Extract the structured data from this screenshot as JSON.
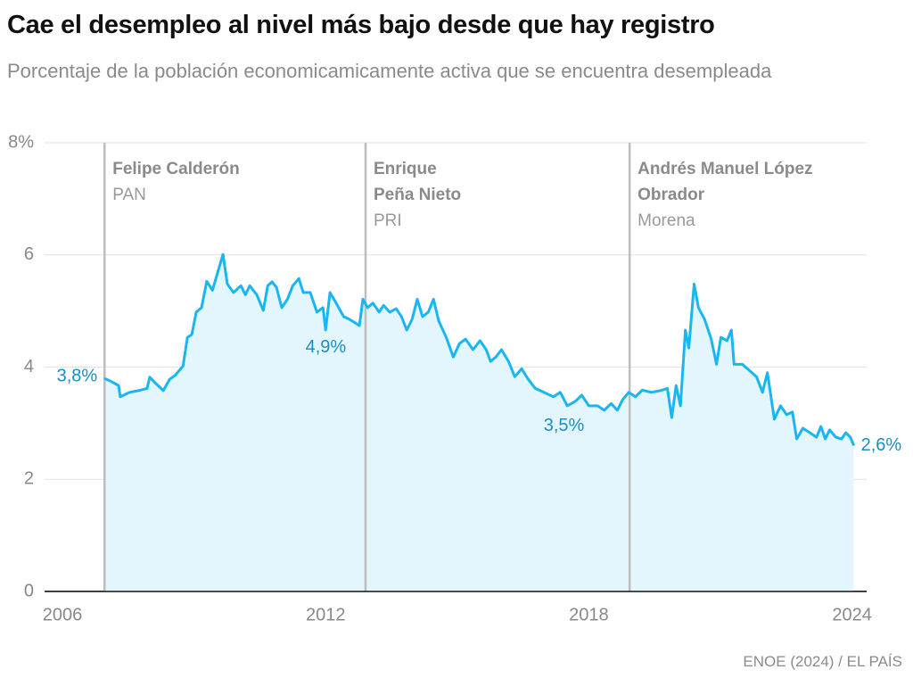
{
  "chart_data": {
    "type": "area-line",
    "title": "Cae el desempleo al nivel más bajo desde que hay registro",
    "subtitle": "Porcentaje de la población economicamicamente activa que se encuentra desempleada",
    "source": "ENOE (2024) / EL PAÍS",
    "color": "#19b6f2",
    "fill_color": "#e3f6fd",
    "label_color": "#1a8ec2",
    "grid": true,
    "xlim": [
      2006,
      2024.15
    ],
    "xticks": [
      2006,
      2012,
      2018,
      2024
    ],
    "ylim": [
      0,
      8
    ],
    "yticks": [
      0,
      2,
      4,
      6,
      {
        "value": 8,
        "label": "8%"
      }
    ],
    "periods": [
      {
        "start": 2006.96,
        "name_lines": [
          "Felipe Calderón"
        ],
        "party": "PAN"
      },
      {
        "start": 2012.91,
        "name_lines": [
          "Enrique",
          "Peña Nieto"
        ],
        "party": "PRI"
      },
      {
        "start": 2018.93,
        "name_lines": [
          "Andrés Manuel López",
          "Obrador"
        ],
        "party": "Morena"
      }
    ],
    "x": [
      2006.96,
      2007.12,
      2007.28,
      2007.32,
      2007.53,
      2007.73,
      2007.93,
      2007.99,
      2008.14,
      2008.3,
      2008.44,
      2008.58,
      2008.75,
      2008.85,
      2008.95,
      2009.05,
      2009.17,
      2009.29,
      2009.42,
      2009.54,
      2009.66,
      2009.76,
      2009.9,
      2010.07,
      2010.17,
      2010.27,
      2010.43,
      2010.58,
      2010.68,
      2010.78,
      2010.88,
      2011.0,
      2011.13,
      2011.25,
      2011.39,
      2011.49,
      2011.65,
      2011.8,
      2011.94,
      2012.0,
      2012.1,
      2012.24,
      2012.41,
      2012.55,
      2012.67,
      2012.77,
      2012.85,
      2012.96,
      2013.08,
      2013.22,
      2013.32,
      2013.46,
      2013.61,
      2013.73,
      2013.85,
      2013.97,
      2014.09,
      2014.21,
      2014.34,
      2014.46,
      2014.58,
      2014.75,
      2014.91,
      2015.05,
      2015.19,
      2015.36,
      2015.52,
      2015.66,
      2015.76,
      2015.88,
      2016.01,
      2016.17,
      2016.31,
      2016.47,
      2016.62,
      2016.78,
      2016.98,
      2017.19,
      2017.35,
      2017.51,
      2017.69,
      2017.84,
      2018.0,
      2018.2,
      2018.35,
      2018.51,
      2018.65,
      2018.77,
      2018.91,
      2019.06,
      2019.22,
      2019.42,
      2019.63,
      2019.79,
      2019.89,
      2019.99,
      2020.09,
      2020.2,
      2020.28,
      2020.4,
      2020.5,
      2020.64,
      2020.79,
      2020.91,
      2021.01,
      2021.15,
      2021.25,
      2021.31,
      2021.5,
      2021.66,
      2021.82,
      2021.96,
      2022.07,
      2022.23,
      2022.37,
      2022.51,
      2022.64,
      2022.74,
      2022.88,
      2023.04,
      2023.19,
      2023.29,
      2023.39,
      2023.49,
      2023.63,
      2023.76,
      2023.86,
      2023.96,
      2024.04
    ],
    "values": [
      3.8,
      3.74,
      3.67,
      3.47,
      3.55,
      3.58,
      3.62,
      3.82,
      3.7,
      3.58,
      3.78,
      3.86,
      4.02,
      4.53,
      4.58,
      4.98,
      5.06,
      5.53,
      5.37,
      5.69,
      6.01,
      5.48,
      5.33,
      5.45,
      5.29,
      5.45,
      5.29,
      5.01,
      5.45,
      5.52,
      5.42,
      5.06,
      5.21,
      5.45,
      5.58,
      5.33,
      5.33,
      4.98,
      5.06,
      4.66,
      5.33,
      5.14,
      4.9,
      4.85,
      4.79,
      4.74,
      5.21,
      5.06,
      5.14,
      4.98,
      5.1,
      4.98,
      5.04,
      4.9,
      4.66,
      4.85,
      5.21,
      4.9,
      4.98,
      5.21,
      4.82,
      4.53,
      4.18,
      4.42,
      4.5,
      4.31,
      4.47,
      4.31,
      4.1,
      4.18,
      4.31,
      4.1,
      3.83,
      3.97,
      3.78,
      3.62,
      3.55,
      3.47,
      3.55,
      3.31,
      3.39,
      3.5,
      3.31,
      3.31,
      3.23,
      3.35,
      3.23,
      3.42,
      3.55,
      3.47,
      3.59,
      3.55,
      3.58,
      3.62,
      3.1,
      3.67,
      3.31,
      4.66,
      4.34,
      5.48,
      5.06,
      4.85,
      4.5,
      4.05,
      4.53,
      4.47,
      4.66,
      4.05,
      4.05,
      3.94,
      3.83,
      3.55,
      3.9,
      3.07,
      3.31,
      3.15,
      3.2,
      2.72,
      2.91,
      2.83,
      2.75,
      2.94,
      2.72,
      2.88,
      2.75,
      2.72,
      2.83,
      2.75,
      2.6
    ],
    "value_labels": {
      "0": "3,8%",
      "42": "4,9%",
      "81": "3,5%",
      "128": "2,6%"
    }
  }
}
